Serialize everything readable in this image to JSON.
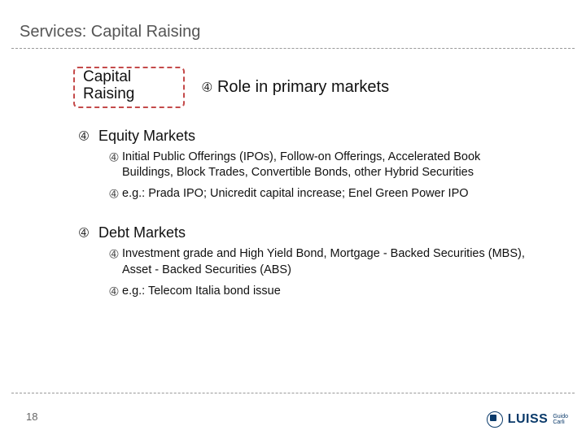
{
  "title": "Services: Capital Raising",
  "header": {
    "box_line1": "Capital",
    "box_line2": "Raising",
    "role_text": "Role in primary markets"
  },
  "sections": [
    {
      "heading": "Equity Markets",
      "bullets": [
        "Initial Public Offerings (IPOs), Follow-on Offerings, Accelerated Book Buildings, Block Trades, Convertible Bonds, other Hybrid Securities",
        "e.g.: Prada IPO; Unicredit capital increase; Enel Green Power IPO"
      ]
    },
    {
      "heading": "Debt Markets",
      "bullets": [
        "Investment grade and High Yield Bond, Mortgage - Backed Securities (MBS), Asset - Backed Securities (ABS)",
        "e.g.: Telecom Italia bond issue"
      ]
    }
  ],
  "page_number": "18",
  "logo": {
    "text": "LUISS",
    "sub1": "Guido",
    "sub2": "Carli"
  },
  "colors": {
    "dashed_box_border": "#c44a4a",
    "divider": "#999999",
    "text": "#111111",
    "logo": "#0a3a6a"
  }
}
